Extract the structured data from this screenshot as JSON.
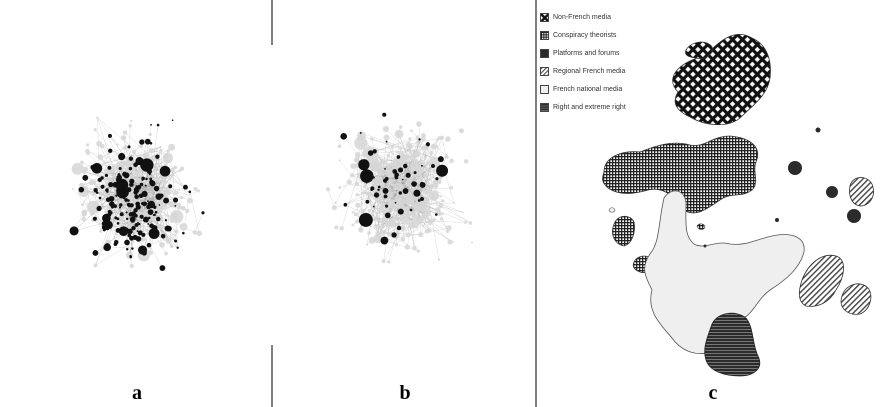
{
  "panels": [
    {
      "label": "a"
    },
    {
      "label": "b"
    },
    {
      "label": "c"
    }
  ],
  "legend": [
    {
      "label": "Non-French media",
      "pattern": "lattice"
    },
    {
      "label": "Conspiracy theorists",
      "pattern": "grid"
    },
    {
      "label": "Platforms and forums",
      "pattern": "solid"
    },
    {
      "label": "Regional French media",
      "pattern": "diagonal"
    },
    {
      "label": "French national media",
      "pattern": "light"
    },
    {
      "label": "Right and extreme right",
      "pattern": "horizontal"
    }
  ],
  "colors": {
    "node_dark": "#111111",
    "node_light": "#d6d6d6",
    "edge": "#9a9a9a",
    "area_light": "#efefef",
    "area_dark": "#2b2b2b"
  }
}
